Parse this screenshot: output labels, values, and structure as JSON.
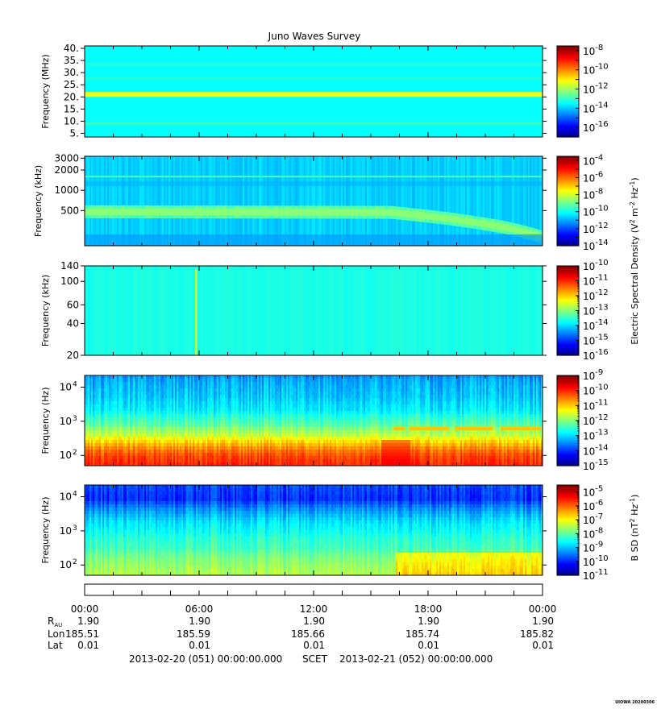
{
  "chart_data": {
    "type": "heatmap",
    "title": "Juno Waves Survey",
    "panels": [
      {
        "name": "hfr-high",
        "ylabel": "Frequency (MHz)",
        "y_scale": "linear",
        "ylim": [
          3.5,
          41
        ],
        "yticks": [
          {
            "v": 5,
            "label": "5."
          },
          {
            "v": 10,
            "label": "10."
          },
          {
            "v": 15,
            "label": "15."
          },
          {
            "v": 20,
            "label": "20."
          },
          {
            "v": 25,
            "label": "25."
          },
          {
            "v": 30,
            "label": "30."
          },
          {
            "v": 35,
            "label": "35."
          },
          {
            "v": 40,
            "label": "40."
          }
        ],
        "colorbar": {
          "min_exp": -17,
          "max_exp": -7.5,
          "ticks": [
            {
              "e": -8,
              "label": "10",
              "sup": "-8"
            },
            {
              "e": -10,
              "label": "10",
              "sup": "-10"
            },
            {
              "e": -12,
              "label": "10",
              "sup": "-12"
            },
            {
              "e": -14,
              "label": "10",
              "sup": "-14"
            },
            {
              "e": -16,
              "label": "10",
              "sup": "-16"
            }
          ]
        },
        "background_level": 0.38,
        "bands": [
          {
            "from": 20,
            "to": 22,
            "level": 0.62
          },
          {
            "from": 8.5,
            "to": 9.5,
            "level": 0.43
          },
          {
            "from": 33,
            "to": 34,
            "level": 0.41
          },
          {
            "from": 27,
            "to": 28,
            "level": 0.41
          }
        ]
      },
      {
        "name": "hfr-low",
        "ylabel": "Frequency (kHz)",
        "y_scale": "log",
        "ylim": [
          150,
          3200
        ],
        "yticks": [
          {
            "v": 500,
            "label": "500"
          },
          {
            "v": 1000,
            "label": "1000"
          },
          {
            "v": 2000,
            "label": "2000"
          },
          {
            "v": 3000,
            "label": "3000"
          }
        ],
        "colorbar": {
          "min_exp": -14,
          "max_exp": -3.5,
          "ticks": [
            {
              "e": -4,
              "label": "10",
              "sup": "-4"
            },
            {
              "e": -6,
              "label": "10",
              "sup": "-6"
            },
            {
              "e": -8,
              "label": "10",
              "sup": "-8"
            },
            {
              "e": -10,
              "label": "10",
              "sup": "-10"
            },
            {
              "e": -12,
              "label": "10",
              "sup": "-12"
            },
            {
              "e": -14,
              "label": "10",
              "sup": "-14"
            }
          ]
        },
        "background_level": 0.33,
        "emission_band": {
          "level": 0.47,
          "points": [
            [
              0,
              480
            ],
            [
              16,
              470
            ],
            [
              19,
              380
            ],
            [
              22,
              280
            ],
            [
              24,
              200
            ]
          ]
        },
        "line": {
          "freq": 1600,
          "level": 0.45
        }
      },
      {
        "name": "lfr-high",
        "ylabel": "Frequency (kHz)",
        "y_scale": "log",
        "ylim": [
          20,
          140
        ],
        "yticks": [
          {
            "v": 20,
            "label": "20"
          },
          {
            "v": 40,
            "label": "40"
          },
          {
            "v": 60,
            "label": "60"
          },
          {
            "v": 100,
            "label": "100"
          },
          {
            "v": 140,
            "label": "140"
          }
        ],
        "colorbar": {
          "min_exp": -16,
          "max_exp": -10,
          "ticks": [
            {
              "e": -10,
              "label": "10",
              "sup": "-10"
            },
            {
              "e": -11,
              "label": "10",
              "sup": "-11"
            },
            {
              "e": -12,
              "label": "10",
              "sup": "-12"
            },
            {
              "e": -13,
              "label": "10",
              "sup": "-13"
            },
            {
              "e": -14,
              "label": "10",
              "sup": "-14"
            },
            {
              "e": -15,
              "label": "10",
              "sup": "-15"
            },
            {
              "e": -16,
              "label": "10",
              "sup": "-16"
            }
          ]
        },
        "background_level": 0.4,
        "spike": {
          "hour": 5.8,
          "level": 0.62
        }
      },
      {
        "name": "lfr-low",
        "ylabel": "Frequency (Hz)",
        "y_scale": "log",
        "ylim": [
          50,
          22000
        ],
        "yticks": [
          {
            "v": 100,
            "label": "10",
            "sup": "2"
          },
          {
            "v": 1000,
            "label": "10",
            "sup": "3"
          },
          {
            "v": 10000,
            "label": "10",
            "sup": "4"
          }
        ],
        "colorbar": {
          "min_exp": -15,
          "max_exp": -9,
          "ticks": [
            {
              "e": -9,
              "label": "10",
              "sup": "-9"
            },
            {
              "e": -10,
              "label": "10",
              "sup": "-10"
            },
            {
              "e": -11,
              "label": "10",
              "sup": "-11"
            },
            {
              "e": -12,
              "label": "10",
              "sup": "-12"
            },
            {
              "e": -13,
              "label": "10",
              "sup": "-13"
            },
            {
              "e": -14,
              "label": "10",
              "sup": "-14"
            },
            {
              "e": -15,
              "label": "10",
              "sup": "-15"
            }
          ]
        },
        "profile": [
          [
            50,
            0.84
          ],
          [
            100,
            0.8
          ],
          [
            200,
            0.7
          ],
          [
            400,
            0.56
          ],
          [
            800,
            0.46
          ],
          [
            2000,
            0.36
          ],
          [
            5000,
            0.32
          ],
          [
            22000,
            0.27
          ]
        ],
        "hotspot": {
          "from_hour": 15.5,
          "to_hour": 17,
          "level": 0.92
        },
        "tone_segments": [
          [
            16.2,
            16.8
          ],
          [
            17.0,
            19.1
          ],
          [
            19.4,
            21.4
          ],
          [
            21.8,
            23.9
          ]
        ],
        "tone_freq": 600
      },
      {
        "name": "magnetometer",
        "ylabel": "Frequency (Hz)",
        "y_scale": "log",
        "ylim": [
          50,
          22000
        ],
        "yticks": [
          {
            "v": 100,
            "label": "10",
            "sup": "2"
          },
          {
            "v": 1000,
            "label": "10",
            "sup": "3"
          },
          {
            "v": 10000,
            "label": "10",
            "sup": "4"
          }
        ],
        "colorbar": {
          "min_exp": -11,
          "max_exp": -4.5,
          "ticks": [
            {
              "e": -5,
              "label": "10",
              "sup": "-5"
            },
            {
              "e": -6,
              "label": "10",
              "sup": "-6"
            },
            {
              "e": -7,
              "label": "10",
              "sup": "-7"
            },
            {
              "e": -8,
              "label": "10",
              "sup": "-8"
            },
            {
              "e": -9,
              "label": "10",
              "sup": "-9"
            },
            {
              "e": -10,
              "label": "10",
              "sup": "-10"
            },
            {
              "e": -11,
              "label": "10",
              "sup": "-11"
            }
          ]
        },
        "profile": [
          [
            50,
            0.55
          ],
          [
            100,
            0.52
          ],
          [
            300,
            0.44
          ],
          [
            1000,
            0.38
          ],
          [
            3000,
            0.3
          ],
          [
            8000,
            0.17
          ],
          [
            22000,
            0.2
          ]
        ],
        "step": {
          "from_hour": 16.3,
          "add": 0.12,
          "max_freq": 250
        }
      }
    ],
    "colorbar_labels": {
      "electric": {
        "text": "Electric Spectral Density (V",
        "sup1": "2",
        "mid": " m",
        "sup2": "-2",
        "mid2": " Hz",
        "sup3": "-1",
        "end": ")"
      },
      "magnetic": {
        "text": "B SD (nT",
        "sup1": "2",
        "mid": " Hz",
        "sup2": "-1",
        "end": ")"
      }
    },
    "x_axis": {
      "range_hours": [
        0,
        24
      ],
      "tick_labels": [
        "00:00",
        "06:00",
        "12:00",
        "18:00",
        "00:00"
      ],
      "tick_hours": [
        0,
        6,
        12,
        18,
        24
      ]
    },
    "ephemeris": [
      {
        "label": "R",
        "sub": "AU",
        "values": [
          "1.90",
          "1.90",
          "1.90",
          "1.90",
          "1.90"
        ]
      },
      {
        "label": "Lon",
        "values": [
          "185.51",
          "185.59",
          "185.66",
          "185.74",
          "185.82"
        ]
      },
      {
        "label": "Lat",
        "values": [
          "0.01",
          "0.01",
          "0.01",
          "0.01",
          "0.01"
        ]
      }
    ],
    "footer": {
      "start": "2013-02-20 (051) 00:00:00.000",
      "scet": "SCET",
      "end": "2013-02-21 (052) 00:00:00.000"
    },
    "stamp": "UIOWA 20200306"
  }
}
